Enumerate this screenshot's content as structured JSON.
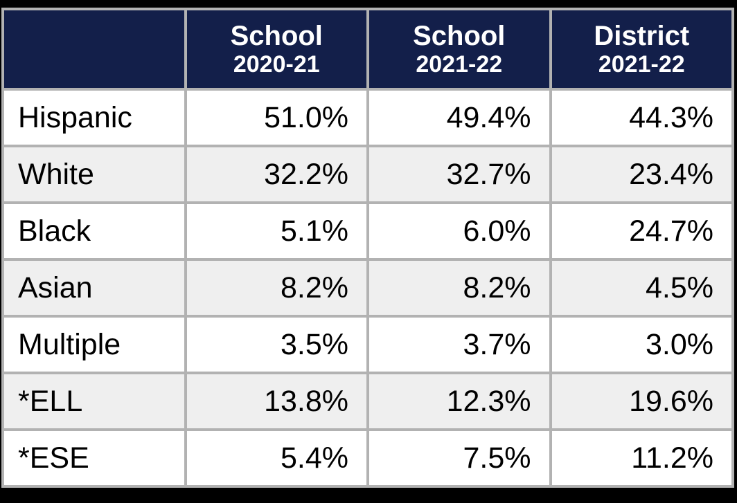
{
  "theme": {
    "frame_bg": "#000000",
    "header_bg": "#131F4A",
    "header_text": "#FFFFFF",
    "grid_color": "#B2B2B2",
    "row_bg": "#FFFFFF",
    "row_alt_bg": "#EFEFEF",
    "text_color": "#000000"
  },
  "table": {
    "header": [
      {
        "line1": "",
        "line2": ""
      },
      {
        "line1": "School",
        "line2": "2020-21"
      },
      {
        "line1": "School",
        "line2": "2021-22"
      },
      {
        "line1": "District",
        "line2": "2021-22"
      }
    ],
    "rows": [
      {
        "label": "Hispanic",
        "values": [
          "51.0%",
          "49.4%",
          "44.3%"
        ]
      },
      {
        "label": "White",
        "values": [
          "32.2%",
          "32.7%",
          "23.4%"
        ]
      },
      {
        "label": "Black",
        "values": [
          "5.1%",
          "6.0%",
          "24.7%"
        ]
      },
      {
        "label": "Asian",
        "values": [
          "8.2%",
          "8.2%",
          "4.5%"
        ]
      },
      {
        "label": "Multiple",
        "values": [
          "3.5%",
          "3.7%",
          "3.0%"
        ]
      },
      {
        "label": "*ELL",
        "values": [
          "13.8%",
          "12.3%",
          "19.6%"
        ]
      },
      {
        "label": "*ESE",
        "values": [
          "5.4%",
          "7.5%",
          "11.2%"
        ]
      }
    ]
  },
  "chart_data": {
    "type": "table",
    "columns": [
      "",
      "School 2020-21",
      "School 2021-22",
      "District 2021-22"
    ],
    "rows": [
      {
        "label": "Hispanic",
        "school_2020_21": 51.0,
        "school_2021_22": 49.4,
        "district_2021_22": 44.3
      },
      {
        "label": "White",
        "school_2020_21": 32.2,
        "school_2021_22": 32.7,
        "district_2021_22": 23.4
      },
      {
        "label": "Black",
        "school_2020_21": 5.1,
        "school_2021_22": 6.0,
        "district_2021_22": 24.7
      },
      {
        "label": "Asian",
        "school_2020_21": 8.2,
        "school_2021_22": 8.2,
        "district_2021_22": 4.5
      },
      {
        "label": "Multiple",
        "school_2020_21": 3.5,
        "school_2021_22": 3.7,
        "district_2021_22": 3.0
      },
      {
        "label": "*ELL",
        "school_2020_21": 13.8,
        "school_2021_22": 12.3,
        "district_2021_22": 19.6
      },
      {
        "label": "*ESE",
        "school_2020_21": 5.4,
        "school_2021_22": 7.5,
        "district_2021_22": 11.2
      }
    ],
    "units": "percent",
    "title": "",
    "notes": "values shown as percentages with one decimal"
  }
}
